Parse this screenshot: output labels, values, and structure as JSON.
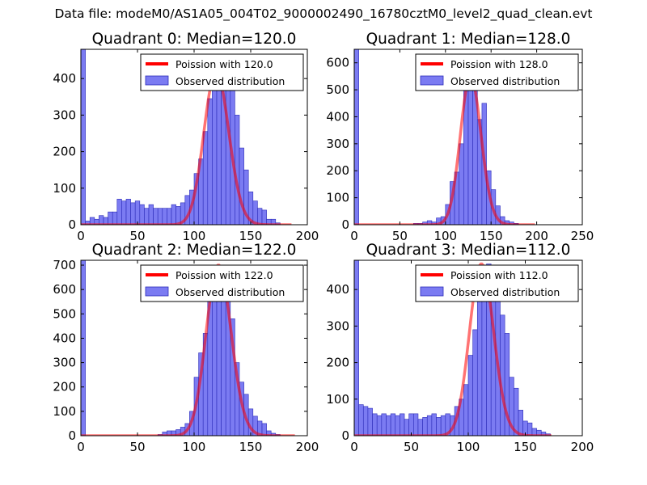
{
  "figure_title": "Data file: modeM0/AS1A05_004T02_9000002490_16780cztM0_level2_quad_clean.evt",
  "colors": {
    "hist_fill": "#7b7bf2",
    "hist_edge": "#2b2bb8",
    "line": "#ff0000",
    "line_alpha": 0.55
  },
  "chart_data": [
    {
      "type": "bar",
      "title": "Quadrant 0: Median=120.0",
      "median": 120.0,
      "xlim": [
        0,
        200
      ],
      "ylim": [
        0,
        480
      ],
      "xticks": [
        0,
        50,
        100,
        150,
        200
      ],
      "yticks": [
        0,
        100,
        200,
        300,
        400
      ],
      "bin_width": 4,
      "bin_starts": [
        0,
        4,
        8,
        12,
        16,
        20,
        24,
        28,
        32,
        36,
        40,
        44,
        48,
        52,
        56,
        60,
        64,
        68,
        72,
        76,
        80,
        84,
        88,
        92,
        96,
        100,
        104,
        108,
        112,
        116,
        120,
        124,
        128,
        132,
        136,
        140,
        144,
        148,
        152,
        156,
        160,
        164,
        168,
        172,
        176,
        180
      ],
      "counts": [
        480,
        10,
        20,
        15,
        25,
        20,
        35,
        35,
        70,
        65,
        70,
        60,
        65,
        55,
        45,
        55,
        45,
        45,
        45,
        45,
        55,
        50,
        60,
        80,
        95,
        140,
        180,
        255,
        345,
        400,
        420,
        400,
        395,
        380,
        300,
        210,
        150,
        90,
        65,
        45,
        40,
        15,
        15,
        5,
        0,
        0
      ],
      "legend": [
        "Poission with 120.0",
        "Observed distribution"
      ],
      "legend_loc": "upper right"
    },
    {
      "type": "bar",
      "title": "Quadrant 1: Median=128.0",
      "median": 128.0,
      "xlim": [
        0,
        250
      ],
      "ylim": [
        0,
        650
      ],
      "xticks": [
        0,
        50,
        100,
        150,
        200,
        250
      ],
      "yticks": [
        0,
        100,
        200,
        300,
        400,
        500,
        600
      ],
      "bin_width": 5,
      "bin_starts": [
        0,
        5,
        10,
        15,
        20,
        25,
        30,
        35,
        40,
        45,
        50,
        55,
        60,
        65,
        70,
        75,
        80,
        85,
        90,
        95,
        100,
        105,
        110,
        115,
        120,
        125,
        130,
        135,
        140,
        145,
        150,
        155,
        160,
        165,
        170,
        175,
        180,
        185,
        190,
        195
      ],
      "counts": [
        650,
        0,
        0,
        0,
        0,
        0,
        0,
        0,
        0,
        0,
        0,
        0,
        0,
        5,
        5,
        10,
        15,
        10,
        25,
        30,
        75,
        160,
        195,
        300,
        510,
        520,
        550,
        390,
        450,
        200,
        130,
        70,
        30,
        15,
        10,
        5,
        0,
        0,
        0,
        0
      ],
      "legend": [
        "Poission with 128.0",
        "Observed distribution"
      ],
      "legend_loc": "upper right"
    },
    {
      "type": "bar",
      "title": "Quadrant 2: Median=122.0",
      "median": 122.0,
      "xlim": [
        0,
        200
      ],
      "ylim": [
        0,
        720
      ],
      "xticks": [
        0,
        50,
        100,
        150,
        200
      ],
      "yticks": [
        0,
        100,
        200,
        300,
        400,
        500,
        600,
        700
      ],
      "bin_width": 4,
      "bin_starts": [
        0,
        4,
        8,
        12,
        16,
        20,
        24,
        28,
        32,
        36,
        40,
        44,
        48,
        52,
        56,
        60,
        64,
        68,
        72,
        76,
        80,
        84,
        88,
        92,
        96,
        100,
        104,
        108,
        112,
        116,
        120,
        124,
        128,
        132,
        136,
        140,
        144,
        148,
        152,
        156,
        160,
        164,
        168,
        172,
        176,
        180
      ],
      "counts": [
        720,
        0,
        0,
        0,
        0,
        0,
        0,
        0,
        0,
        0,
        0,
        0,
        0,
        0,
        0,
        0,
        0,
        5,
        15,
        20,
        20,
        25,
        35,
        50,
        100,
        240,
        340,
        420,
        580,
        600,
        700,
        640,
        580,
        480,
        300,
        220,
        170,
        110,
        80,
        60,
        50,
        20,
        10,
        5,
        0,
        0
      ],
      "legend": [
        "Poission with 122.0",
        "Observed distribution"
      ],
      "legend_loc": "upper right"
    },
    {
      "type": "bar",
      "title": "Quadrant 3: Median=112.0",
      "median": 112.0,
      "xlim": [
        0,
        200
      ],
      "ylim": [
        0,
        480
      ],
      "xticks": [
        0,
        50,
        100,
        150,
        200
      ],
      "yticks": [
        0,
        100,
        200,
        300,
        400
      ],
      "bin_width": 4,
      "bin_starts": [
        0,
        4,
        8,
        12,
        16,
        20,
        24,
        28,
        32,
        36,
        40,
        44,
        48,
        52,
        56,
        60,
        64,
        68,
        72,
        76,
        80,
        84,
        88,
        92,
        96,
        100,
        104,
        108,
        112,
        116,
        120,
        124,
        128,
        132,
        136,
        140,
        144,
        148,
        152,
        156,
        160,
        164,
        168,
        172,
        176,
        180
      ],
      "counts": [
        480,
        85,
        80,
        75,
        60,
        55,
        60,
        55,
        60,
        55,
        60,
        45,
        60,
        60,
        45,
        50,
        55,
        60,
        50,
        55,
        60,
        55,
        80,
        100,
        140,
        220,
        290,
        380,
        400,
        470,
        460,
        450,
        330,
        280,
        160,
        130,
        70,
        40,
        35,
        20,
        15,
        10,
        5,
        0,
        0,
        0
      ],
      "legend": [
        "Poission with 112.0",
        "Observed distribution"
      ],
      "legend_loc": "upper right"
    }
  ]
}
